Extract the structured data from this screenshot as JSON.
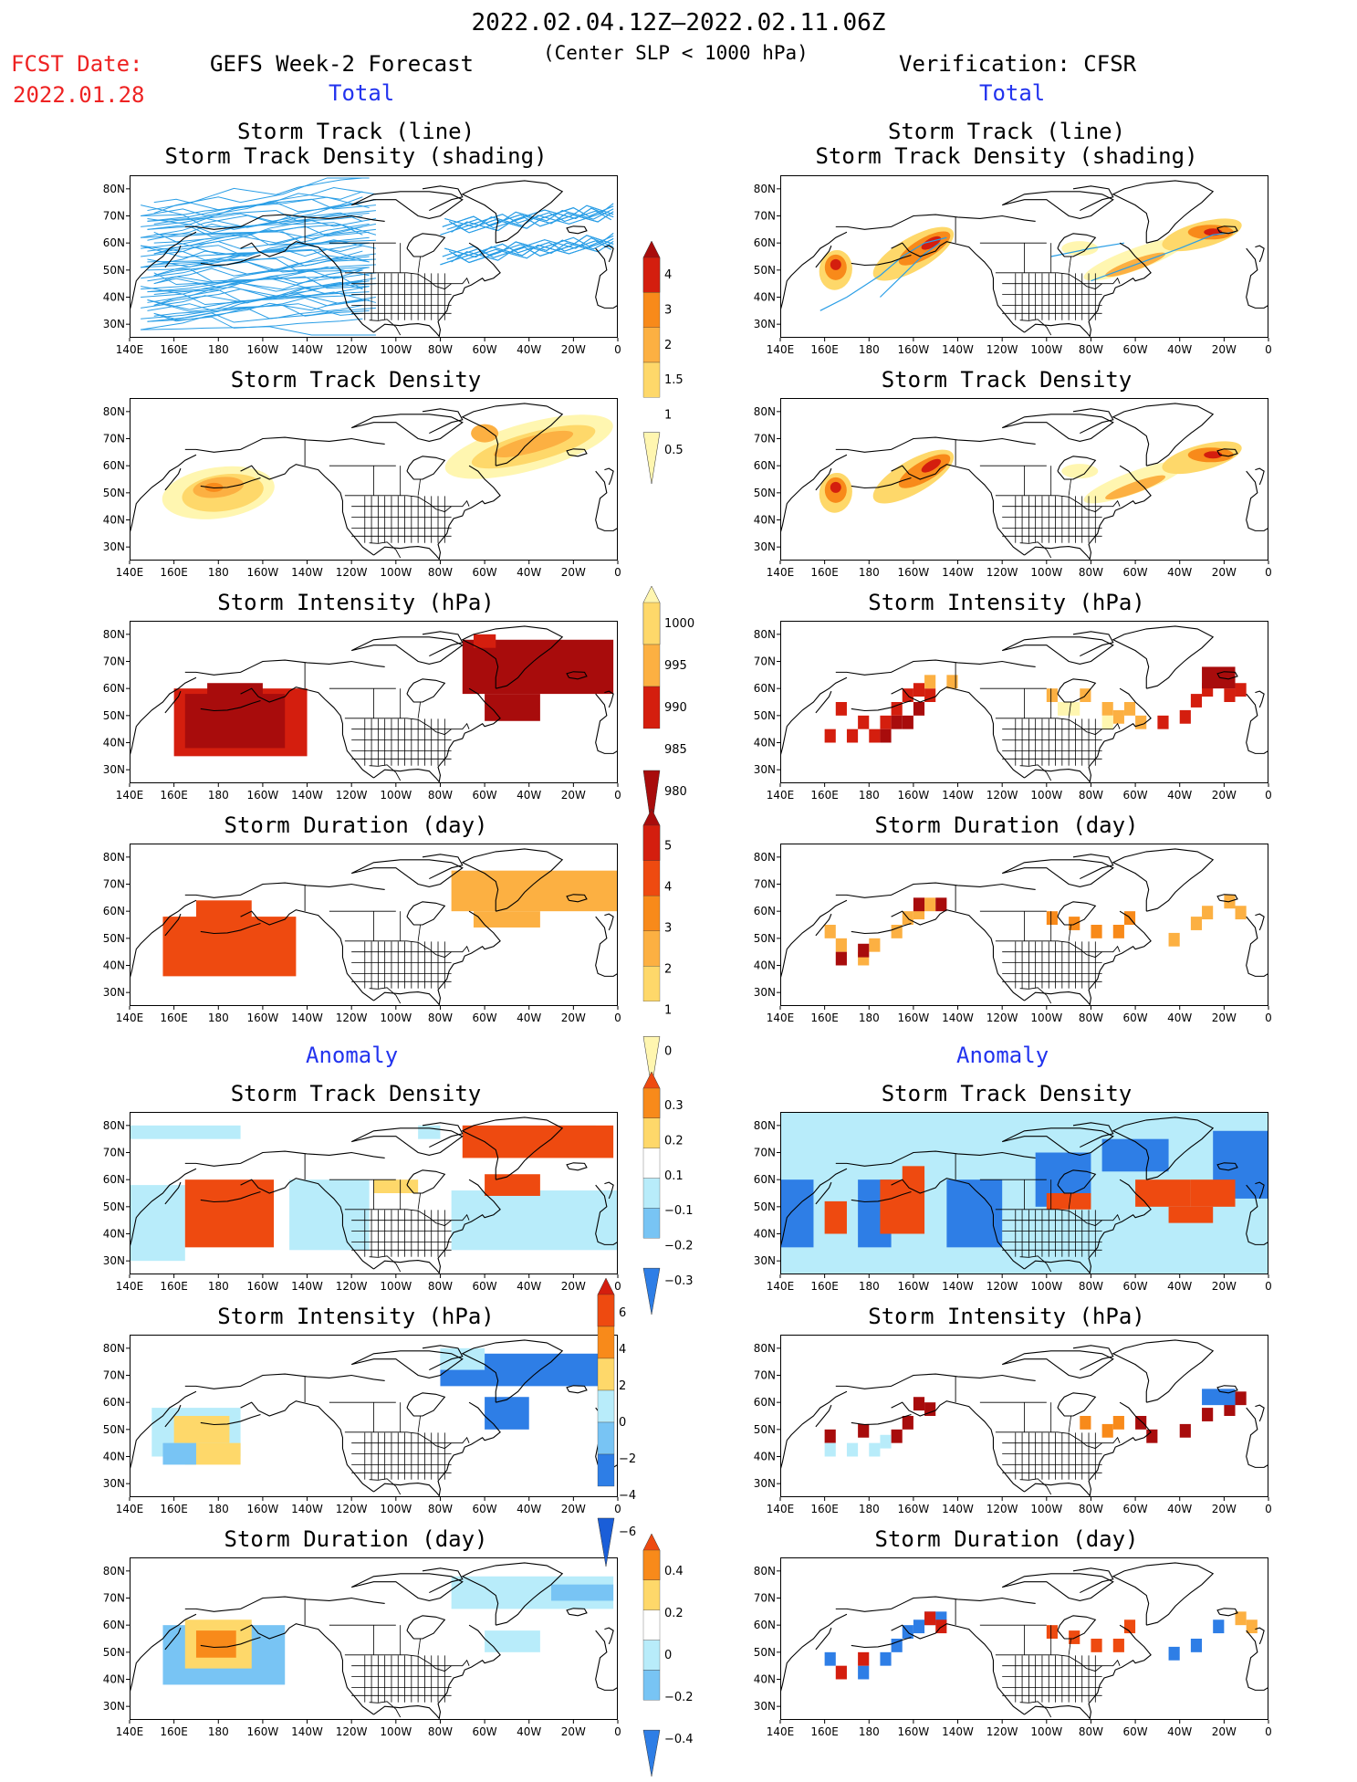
{
  "header": {
    "date_range": "2022.02.04.12Z–2022.02.11.06Z",
    "subtitle": "(Center SLP < 1000 hPa)",
    "fcst_label": "FCST Date:",
    "fcst_date": "2022.01.28",
    "left_model": "GEFS Week-2 Forecast",
    "right_model": "Verification: CFSR",
    "total_label": "Total",
    "anomaly_label": "Anomaly"
  },
  "panels": {
    "track": [
      "Storm Track (line)",
      "Storm Track Density (shading)"
    ],
    "density": "Storm Track Density",
    "intensity": "Storm Intensity (hPa)",
    "duration": "Storm Duration (day)"
  },
  "axes": {
    "lon_ticks": [
      "140E",
      "160E",
      "180",
      "160W",
      "140W",
      "120W",
      "100W",
      "80W",
      "60W",
      "40W",
      "20W",
      "0"
    ],
    "lat_ticks": [
      "80N",
      "70N",
      "60N",
      "50N",
      "40N",
      "30N"
    ]
  },
  "colorbars": {
    "density_total": [
      "4",
      "3",
      "2",
      "1.5",
      "1",
      "0.5"
    ],
    "intensity_total": [
      "1000",
      "995",
      "990",
      "985",
      "980"
    ],
    "duration_total": [
      "5",
      "4",
      "3",
      "2",
      "1",
      "0"
    ],
    "density_anom": [
      "0.3",
      "0.2",
      "0.1",
      "−0.1",
      "−0.2",
      "−0.3"
    ],
    "intensity_anom": [
      "6",
      "4",
      "2",
      "0",
      "−2",
      "−4",
      "−6"
    ],
    "duration_anom": [
      "0.4",
      "0.2",
      "0",
      "−0.2",
      "−0.4"
    ]
  },
  "colors": {
    "yellow_light": "#fff6b0",
    "yellow": "#fed86a",
    "orange_light": "#fcb042",
    "orange": "#f88a1a",
    "red_orange": "#ee4a10",
    "red": "#d41e0e",
    "dark_red": "#a80c0c",
    "light_blue": "#b8ecfa",
    "mid_blue": "#78c4f4",
    "blue": "#2e7ee6",
    "track_line": "#2a9ee6"
  }
}
